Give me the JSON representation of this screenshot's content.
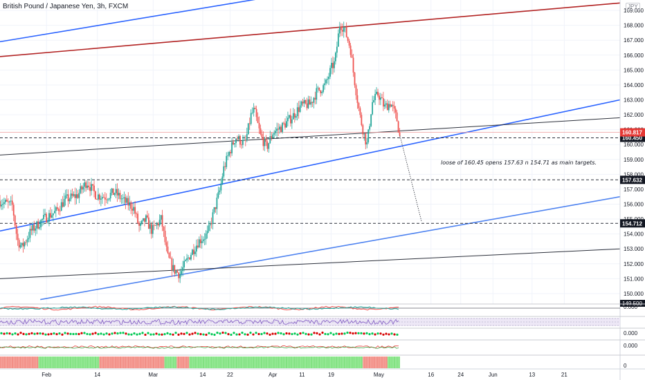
{
  "header": {
    "title": "British Pound / Japanese Yen, 3h, FXCM",
    "currency_badge": "JPY"
  },
  "colors": {
    "up": "#26a69a",
    "down": "#ef5350",
    "red_channel": "#b22222",
    "blue_channel": "#2962ff",
    "price_label_bg": "#131722",
    "last_price_bg": "#e53935"
  },
  "chart_data": {
    "type": "candlestick",
    "title": "British Pound / Japanese Yen, 3h, FXCM",
    "ylim": [
      149.3,
      169.7
    ],
    "y_ticks": [
      "150.000",
      "151.000",
      "152.000",
      "153.000",
      "154.000",
      "155.000",
      "156.000",
      "157.000",
      "158.000",
      "159.000",
      "160.000",
      "161.000",
      "162.000",
      "163.000",
      "164.000",
      "165.000",
      "166.000",
      "167.000",
      "168.000",
      "169.000"
    ],
    "x_ticks": [
      {
        "label": "Feb",
        "t": 0.075
      },
      {
        "label": "14",
        "t": 0.157
      },
      {
        "label": "Mar",
        "t": 0.247
      },
      {
        "label": "14",
        "t": 0.327
      },
      {
        "label": "22",
        "t": 0.371
      },
      {
        "label": "Apr",
        "t": 0.44
      },
      {
        "label": "11",
        "t": 0.487
      },
      {
        "label": "19",
        "t": 0.534
      },
      {
        "label": "May",
        "t": 0.611
      },
      {
        "label": "16",
        "t": 0.695
      },
      {
        "label": "24",
        "t": 0.743
      },
      {
        "label": "Jun",
        "t": 0.795
      },
      {
        "label": "13",
        "t": 0.858
      },
      {
        "label": "21",
        "t": 0.91
      }
    ],
    "price_path": [
      [
        0.0,
        156.2
      ],
      [
        0.02,
        155.9
      ],
      [
        0.028,
        153.6
      ],
      [
        0.035,
        153.1
      ],
      [
        0.05,
        154.2
      ],
      [
        0.07,
        155.0
      ],
      [
        0.09,
        155.5
      ],
      [
        0.105,
        156.3
      ],
      [
        0.125,
        156.6
      ],
      [
        0.14,
        157.5
      ],
      [
        0.155,
        156.6
      ],
      [
        0.17,
        156.5
      ],
      [
        0.185,
        156.8
      ],
      [
        0.2,
        156.2
      ],
      [
        0.215,
        155.8
      ],
      [
        0.225,
        154.4
      ],
      [
        0.235,
        155.0
      ],
      [
        0.245,
        154.2
      ],
      [
        0.26,
        155.0
      ],
      [
        0.27,
        152.5
      ],
      [
        0.28,
        151.6
      ],
      [
        0.29,
        151.3
      ],
      [
        0.305,
        152.5
      ],
      [
        0.32,
        153.5
      ],
      [
        0.335,
        154.0
      ],
      [
        0.345,
        155.5
      ],
      [
        0.355,
        157.0
      ],
      [
        0.36,
        158.3
      ],
      [
        0.37,
        159.5
      ],
      [
        0.38,
        160.5
      ],
      [
        0.395,
        160.0
      ],
      [
        0.405,
        162.0
      ],
      [
        0.41,
        162.3
      ],
      [
        0.42,
        160.6
      ],
      [
        0.43,
        159.8
      ],
      [
        0.44,
        160.8
      ],
      [
        0.455,
        161.2
      ],
      [
        0.47,
        161.8
      ],
      [
        0.485,
        162.6
      ],
      [
        0.5,
        162.7
      ],
      [
        0.51,
        163.5
      ],
      [
        0.525,
        164.0
      ],
      [
        0.535,
        165.2
      ],
      [
        0.54,
        165.5
      ],
      [
        0.548,
        168.1
      ],
      [
        0.555,
        167.8
      ],
      [
        0.565,
        166.5
      ],
      [
        0.57,
        164.8
      ],
      [
        0.58,
        162.0
      ],
      [
        0.588,
        160.5
      ],
      [
        0.592,
        160.0
      ],
      [
        0.6,
        162.8
      ],
      [
        0.61,
        163.4
      ],
      [
        0.62,
        162.5
      ],
      [
        0.63,
        162.8
      ],
      [
        0.64,
        161.7
      ],
      [
        0.645,
        160.45
      ]
    ],
    "horizontal_levels": [
      {
        "price": 160.45,
        "label": "160.450",
        "style": "dashed"
      },
      {
        "price": 157.632,
        "label": "157.632",
        "style": "dashed"
      },
      {
        "price": 154.712,
        "label": "154.712",
        "style": "dashed"
      }
    ],
    "last_price": {
      "price": 160.817,
      "label": "160.817"
    },
    "partial_label": "149.500",
    "trend_lines": [
      {
        "name": "blue-upper",
        "color": "blue",
        "from": [
          0.0,
          166.9
        ],
        "to": [
          0.45,
          170.0
        ]
      },
      {
        "name": "red-channel",
        "color": "red",
        "from": [
          0.0,
          165.9
        ],
        "to": [
          1.0,
          169.5
        ]
      },
      {
        "name": "blue-mid",
        "color": "blue",
        "from": [
          0.0,
          154.2
        ],
        "to": [
          1.0,
          163.0
        ]
      },
      {
        "name": "black-mid",
        "color": "black",
        "from": [
          0.0,
          159.3
        ],
        "to": [
          1.0,
          161.8
        ]
      },
      {
        "name": "blue-lower",
        "color": "lightblue",
        "from": [
          0.065,
          149.6
        ],
        "to": [
          1.0,
          156.5
        ]
      },
      {
        "name": "black-lower",
        "color": "black",
        "from": [
          0.0,
          151.0
        ],
        "to": [
          1.0,
          153.0
        ]
      }
    ],
    "projection": {
      "from": [
        0.645,
        160.6
      ],
      "to": [
        0.68,
        154.8
      ]
    },
    "annotation": "loose of 160.45 opens 157.63 n 154.71 as main targets.",
    "indicator_labels": [
      "0.000",
      "0.000",
      "0.000",
      "0"
    ]
  }
}
